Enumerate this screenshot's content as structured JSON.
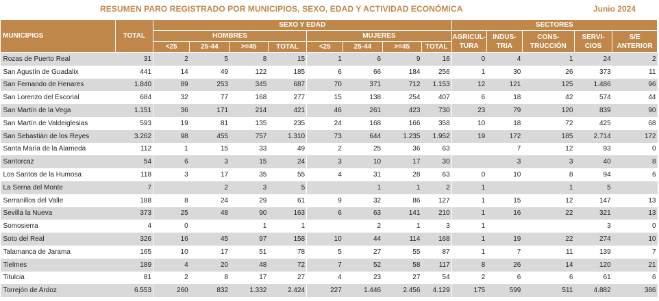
{
  "header": {
    "title": "RESUMEN PARO REGISTRADO POR MUNICIPIOS, SEXO, EDAD Y ACTIVIDAD ECONÓMICA",
    "date": "Junio 2024"
  },
  "columns": {
    "municipios": "MUNICIPIOS",
    "total": "TOTAL",
    "sexo_edad": "SEXO Y EDAD",
    "hombres": "HOMBRES",
    "mujeres": "MUJERES",
    "sectores": "SECTORES",
    "age": [
      "<25",
      "25-44",
      ">=45",
      "TOTAL"
    ],
    "sectors": [
      "AGRICUL-\nTURA",
      "INDUS-\nTRIA",
      "CONS-\nTRUCCIÓN",
      "SERVI-\nCIOS",
      "S/E\nANTERIOR"
    ]
  },
  "rows": [
    [
      "Rozas de Puerto Real",
      "31",
      "2",
      "5",
      "8",
      "15",
      "1",
      "6",
      "9",
      "16",
      "0",
      "4",
      "1",
      "24",
      "2"
    ],
    [
      "San Agustín de Guadalix",
      "441",
      "14",
      "49",
      "122",
      "185",
      "6",
      "66",
      "184",
      "256",
      "1",
      "30",
      "26",
      "373",
      "11"
    ],
    [
      "San Fernando de Henares",
      "1.840",
      "89",
      "253",
      "345",
      "687",
      "70",
      "371",
      "712",
      "1.153",
      "12",
      "121",
      "125",
      "1.486",
      "96"
    ],
    [
      "San Lorenzo del Escorial",
      "684",
      "32",
      "77",
      "168",
      "277",
      "15",
      "138",
      "254",
      "407",
      "6",
      "18",
      "42",
      "574",
      "44"
    ],
    [
      "San Martín de la Vega",
      "1.151",
      "36",
      "171",
      "214",
      "421",
      "46",
      "261",
      "423",
      "730",
      "23",
      "79",
      "120",
      "839",
      "90"
    ],
    [
      "San Martín de Valdeiglesias",
      "593",
      "19",
      "81",
      "135",
      "235",
      "24",
      "168",
      "166",
      "358",
      "10",
      "18",
      "72",
      "425",
      "68"
    ],
    [
      "San Sebastián de los Reyes",
      "3.262",
      "98",
      "455",
      "757",
      "1.310",
      "73",
      "644",
      "1.235",
      "1.952",
      "19",
      "172",
      "185",
      "2.714",
      "172"
    ],
    [
      "Santa María de la Alameda",
      "112",
      "1",
      "15",
      "33",
      "49",
      "2",
      "25",
      "36",
      "63",
      "",
      "7",
      "12",
      "93",
      "0"
    ],
    [
      "Santorcaz",
      "54",
      "6",
      "3",
      "15",
      "24",
      "3",
      "10",
      "17",
      "30",
      "",
      "3",
      "3",
      "40",
      "8"
    ],
    [
      "Los Santos de la Humosa",
      "118",
      "3",
      "17",
      "35",
      "55",
      "4",
      "31",
      "28",
      "63",
      "0",
      "10",
      "8",
      "94",
      "6"
    ],
    [
      "La Serna del Monte",
      "7",
      "",
      "2",
      "3",
      "5",
      "",
      "1",
      "1",
      "2",
      "1",
      "",
      "1",
      "5",
      ""
    ],
    [
      "Serranillos del Valle",
      "188",
      "8",
      "24",
      "29",
      "61",
      "9",
      "32",
      "86",
      "127",
      "1",
      "15",
      "12",
      "147",
      "13"
    ],
    [
      "Sevilla la Nueva",
      "373",
      "25",
      "48",
      "90",
      "163",
      "6",
      "63",
      "141",
      "210",
      "1",
      "16",
      "22",
      "321",
      "13"
    ],
    [
      "Somosierra",
      "4",
      "0",
      "",
      "1",
      "1",
      "",
      "2",
      "1",
      "3",
      "1",
      "",
      "",
      "3",
      "0"
    ],
    [
      "Soto del Real",
      "326",
      "16",
      "45",
      "97",
      "158",
      "10",
      "44",
      "114",
      "168",
      "1",
      "19",
      "22",
      "274",
      "10"
    ],
    [
      "Talamanca de Jarama",
      "165",
      "10",
      "17",
      "51",
      "78",
      "5",
      "27",
      "55",
      "87",
      "1",
      "7",
      "11",
      "139",
      "7"
    ],
    [
      "Tielmes",
      "189",
      "4",
      "20",
      "48",
      "72",
      "7",
      "52",
      "58",
      "117",
      "8",
      "26",
      "14",
      "120",
      "21"
    ],
    [
      "Titulcia",
      "81",
      "2",
      "8",
      "17",
      "27",
      "4",
      "23",
      "27",
      "54",
      "2",
      "6",
      "6",
      "61",
      "6"
    ],
    [
      "Torrejón de Ardoz",
      "6.553",
      "260",
      "832",
      "1.332",
      "2.424",
      "227",
      "1.446",
      "2.456",
      "4.129",
      "175",
      "599",
      "511",
      "4.882",
      "386"
    ]
  ]
}
